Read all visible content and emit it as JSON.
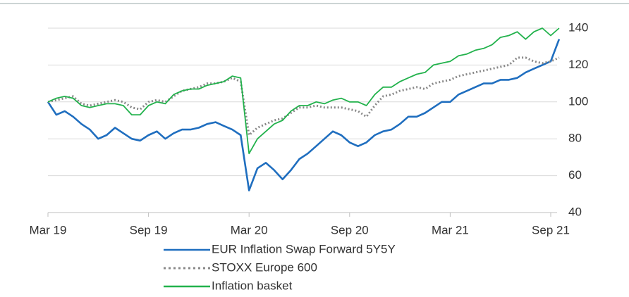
{
  "chart_data": {
    "type": "line",
    "x": [
      "Mar 19",
      null,
      null,
      null,
      null,
      null,
      null,
      null,
      null,
      null,
      null,
      null,
      "Sep 19",
      null,
      null,
      null,
      null,
      null,
      null,
      null,
      null,
      null,
      null,
      null,
      "Mar 20",
      null,
      null,
      null,
      null,
      null,
      null,
      null,
      null,
      null,
      null,
      null,
      "Sep 20",
      null,
      null,
      null,
      null,
      null,
      null,
      null,
      null,
      null,
      null,
      null,
      "Mar 21",
      null,
      null,
      null,
      null,
      null,
      null,
      null,
      null,
      null,
      null,
      null,
      "Sep 21",
      null
    ],
    "series": [
      {
        "name": "EUR Inflation Swap Forward 5Y5Y",
        "color": "#1f6ebf",
        "style": "solid",
        "values": [
          100,
          93,
          95,
          92,
          88,
          85,
          80,
          82,
          86,
          83,
          80,
          79,
          82,
          84,
          80,
          83,
          85,
          85,
          86,
          88,
          89,
          87,
          85,
          82,
          52,
          64,
          67,
          63,
          58,
          63,
          69,
          72,
          76,
          80,
          84,
          82,
          78,
          76,
          78,
          82,
          84,
          85,
          88,
          92,
          92,
          94,
          97,
          100,
          100,
          104,
          106,
          108,
          110,
          110,
          112,
          112,
          113,
          116,
          118,
          120,
          122,
          134
        ]
      },
      {
        "name": "STOXX Europe 600",
        "color": "#888888",
        "style": "dotted",
        "values": [
          100,
          101,
          102,
          103,
          99,
          98,
          99,
          100,
          101,
          100,
          97,
          96,
          100,
          101,
          100,
          103,
          106,
          107,
          108,
          110,
          110,
          111,
          113,
          111,
          82,
          86,
          88,
          90,
          91,
          94,
          97,
          97,
          98,
          97,
          97,
          97,
          96,
          95,
          92,
          98,
          103,
          104,
          106,
          107,
          108,
          107,
          110,
          111,
          112,
          114,
          115,
          116,
          117,
          118,
          119,
          120,
          124,
          124,
          122,
          121,
          122,
          124
        ]
      },
      {
        "name": "Inflation basket",
        "color": "#22b24c",
        "style": "solid",
        "values": [
          100,
          102,
          103,
          102,
          98,
          97,
          98,
          99,
          99,
          98,
          93,
          93,
          98,
          100,
          99,
          104,
          106,
          107,
          107,
          109,
          110,
          111,
          114,
          113,
          72,
          80,
          84,
          88,
          90,
          95,
          98,
          98,
          100,
          99,
          101,
          102,
          100,
          100,
          98,
          104,
          108,
          108,
          111,
          113,
          115,
          116,
          120,
          121,
          122,
          125,
          126,
          128,
          129,
          131,
          135,
          136,
          138,
          134,
          138,
          140,
          136,
          140
        ]
      }
    ],
    "ylim": [
      40,
      140
    ],
    "yticks": [
      40,
      60,
      80,
      100,
      120,
      140
    ],
    "grid": true,
    "legend": "bottom"
  }
}
